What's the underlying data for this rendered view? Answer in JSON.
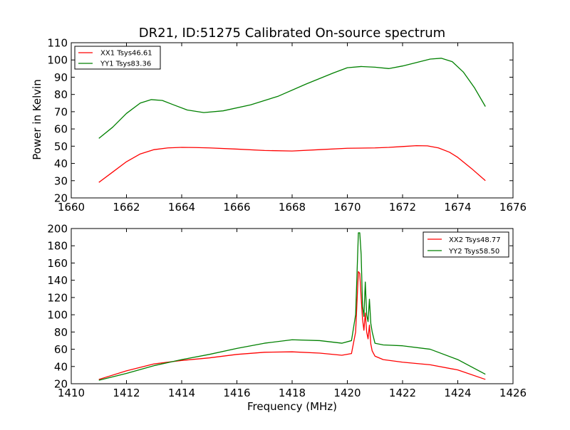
{
  "chart_data": [
    {
      "type": "line",
      "title": "DR21, ID:51275 Calibrated On-source spectrum",
      "xlabel": "",
      "ylabel": "Power in Kelvin",
      "xlim": [
        1660,
        1676
      ],
      "ylim": [
        20,
        110
      ],
      "xticks": [
        1660,
        1662,
        1664,
        1666,
        1668,
        1670,
        1672,
        1674,
        1676
      ],
      "yticks": [
        20,
        30,
        40,
        50,
        60,
        70,
        80,
        90,
        100,
        110
      ],
      "grid": false,
      "legend_position": "upper-left",
      "series": [
        {
          "name": "XX1 Tsys46.61",
          "color": "#ff0000",
          "x": [
            1661.0,
            1661.5,
            1662.0,
            1662.5,
            1663.0,
            1663.5,
            1664.0,
            1664.5,
            1665.0,
            1666.0,
            1667.0,
            1668.0,
            1669.0,
            1670.0,
            1671.0,
            1671.5,
            1672.0,
            1672.5,
            1672.9,
            1673.3,
            1673.7,
            1674.0,
            1674.5,
            1675.0
          ],
          "y": [
            29,
            35,
            41,
            45.5,
            48,
            49,
            49.3,
            49.2,
            49,
            48.3,
            47.5,
            47.2,
            48,
            48.8,
            49,
            49.3,
            49.8,
            50.3,
            50.2,
            49,
            46.5,
            43.5,
            37,
            30
          ]
        },
        {
          "name": "YY1 Tsys83.36",
          "color": "#008000",
          "x": [
            1661.0,
            1661.5,
            1662.0,
            1662.5,
            1662.9,
            1663.3,
            1663.7,
            1664.2,
            1664.8,
            1665.5,
            1666.5,
            1667.5,
            1668.5,
            1669.5,
            1670.0,
            1670.5,
            1671.0,
            1671.5,
            1672.0,
            1672.5,
            1673.0,
            1673.4,
            1673.8,
            1674.2,
            1674.6,
            1675.0
          ],
          "y": [
            54.5,
            61,
            69,
            75,
            77,
            76.5,
            74,
            71,
            69.5,
            70.5,
            74,
            79,
            86,
            92.5,
            95.5,
            96.2,
            95.8,
            95,
            96.5,
            98.5,
            100.5,
            101,
            99,
            93,
            84,
            73
          ]
        }
      ]
    },
    {
      "type": "line",
      "title": "",
      "xlabel": "Frequency (MHz)",
      "ylabel": "",
      "xlim": [
        1410,
        1426
      ],
      "ylim": [
        20,
        200
      ],
      "xticks": [
        1410,
        1412,
        1414,
        1416,
        1418,
        1420,
        1422,
        1424,
        1426
      ],
      "yticks": [
        20,
        40,
        60,
        80,
        100,
        120,
        140,
        160,
        180,
        200
      ],
      "grid": false,
      "legend_position": "upper-right",
      "series": [
        {
          "name": "XX2 Tsys48.77",
          "color": "#ff0000",
          "x": [
            1411.0,
            1412.0,
            1413.0,
            1414.0,
            1415.0,
            1416.0,
            1417.0,
            1418.0,
            1419.0,
            1419.8,
            1420.15,
            1420.3,
            1420.4,
            1420.45,
            1420.5,
            1420.55,
            1420.6,
            1420.65,
            1420.7,
            1420.75,
            1420.8,
            1420.85,
            1420.9,
            1421.0,
            1421.3,
            1422.0,
            1423.0,
            1424.0,
            1425.0
          ],
          "y": [
            25,
            35,
            43,
            47,
            50,
            54,
            56.5,
            57,
            55.5,
            53,
            55,
            80,
            150,
            148,
            120,
            95,
            82,
            102,
            80,
            72,
            88,
            66,
            58,
            52,
            48,
            45,
            42,
            36,
            25
          ]
        },
        {
          "name": "YY2 Tsys58.50",
          "color": "#008000",
          "x": [
            1411.0,
            1412.0,
            1413.0,
            1414.0,
            1415.0,
            1416.0,
            1417.0,
            1418.0,
            1419.0,
            1419.8,
            1420.15,
            1420.3,
            1420.4,
            1420.45,
            1420.5,
            1420.55,
            1420.6,
            1420.65,
            1420.7,
            1420.75,
            1420.8,
            1420.85,
            1420.9,
            1421.0,
            1421.3,
            1422.0,
            1423.0,
            1424.0,
            1425.0
          ],
          "y": [
            24,
            32,
            41,
            48,
            54,
            61,
            67,
            71,
            70,
            67,
            70,
            100,
            195,
            195,
            170,
            110,
            98,
            138,
            100,
            92,
            118,
            90,
            80,
            67,
            65,
            64,
            60,
            48,
            31
          ]
        }
      ]
    }
  ]
}
